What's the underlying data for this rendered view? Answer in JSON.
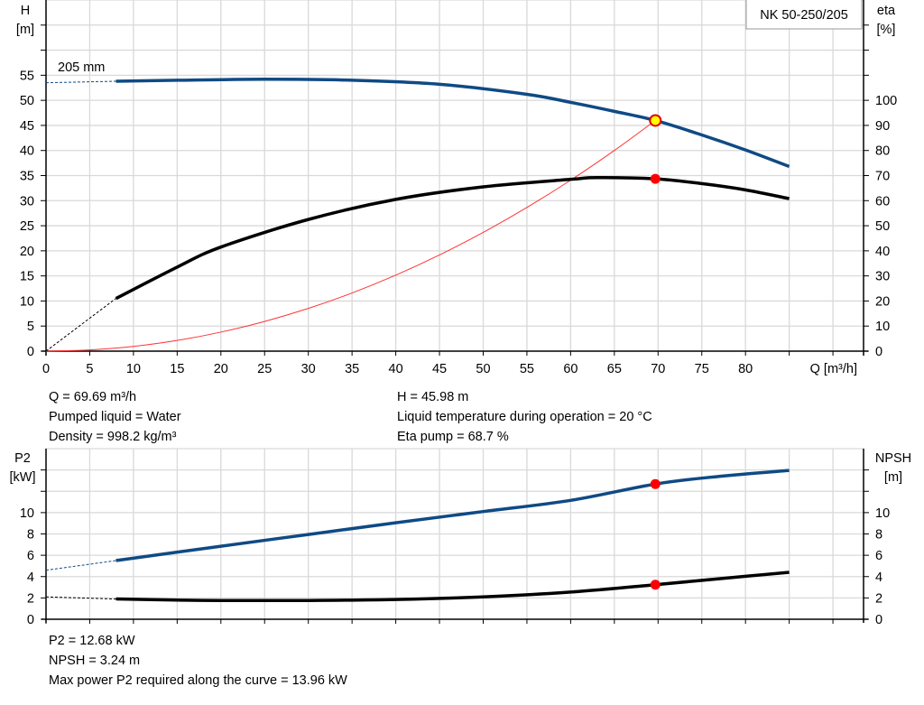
{
  "chart_data": [
    {
      "type": "line",
      "title": "NK 50-250/205",
      "xlabel": "Q [m³/h]",
      "ylabel_left": "H\n[m]",
      "ylabel_right": "eta\n[%]",
      "xlim": [
        0,
        93.5
      ],
      "ylim_left": [
        0,
        70
      ],
      "ylim_right": [
        0,
        140
      ],
      "x_ticks": [
        0,
        5,
        10,
        15,
        20,
        25,
        30,
        35,
        40,
        45,
        50,
        55,
        60,
        65,
        70,
        75,
        80
      ],
      "y_ticks_left": [
        0,
        5,
        10,
        15,
        20,
        25,
        30,
        35,
        40,
        45,
        50,
        55
      ],
      "y_ticks_right": [
        0,
        10,
        20,
        30,
        40,
        50,
        60,
        70,
        80,
        90,
        100
      ],
      "grid": true,
      "annotation": "205 mm",
      "series": [
        {
          "name": "H",
          "axis": "left",
          "color": "#0f4a84",
          "dashed": {
            "x": [
              0,
              8
            ],
            "y": [
              53.5,
              53.8
            ]
          },
          "x": [
            8,
            15,
            25,
            35,
            45,
            55,
            60,
            65,
            69.69,
            75,
            80,
            85
          ],
          "y": [
            53.8,
            54.0,
            54.2,
            54.0,
            53.2,
            51.2,
            49.6,
            47.8,
            45.98,
            43.1,
            40.1,
            36.8
          ]
        },
        {
          "name": "eta",
          "axis": "right",
          "color": "#000000",
          "dashed": {
            "x": [
              0,
              8
            ],
            "y": [
              0,
              21
            ]
          },
          "x": [
            8,
            15,
            20,
            30,
            40,
            50,
            60,
            63,
            69.69,
            75,
            80,
            85
          ],
          "y": [
            21,
            33.5,
            41.5,
            52.5,
            60.5,
            65.5,
            68.5,
            69.2,
            68.7,
            66.8,
            64.3,
            60.8
          ]
        },
        {
          "name": "system",
          "axis": "left",
          "color": "#ff3333",
          "x": [
            0,
            5,
            10,
            15,
            20,
            25,
            30,
            35,
            40,
            45,
            50,
            55,
            60,
            65,
            69.69
          ],
          "y": [
            0,
            0.24,
            0.95,
            2.13,
            3.79,
            5.92,
            8.52,
            11.6,
            15.15,
            19.17,
            23.67,
            28.64,
            34.08,
            40.0,
            45.98
          ]
        }
      ],
      "operating_point": {
        "x": 69.69,
        "H": 45.98,
        "eta": 68.7
      }
    },
    {
      "type": "line",
      "ylabel_left": "P2\n[kW]",
      "ylabel_right": "NPSH\n[m]",
      "xlim": [
        0,
        93.5
      ],
      "ylim": [
        0,
        16
      ],
      "y_ticks": [
        0,
        2,
        4,
        6,
        8,
        10
      ],
      "grid": true,
      "series": [
        {
          "name": "P2",
          "color": "#0f4a84",
          "dashed": {
            "x": [
              0,
              8
            ],
            "y": [
              4.6,
              5.5
            ]
          },
          "x": [
            8,
            20,
            30,
            40,
            50,
            60,
            69.69,
            77,
            85
          ],
          "y": [
            5.5,
            6.85,
            7.95,
            9.05,
            10.1,
            11.15,
            12.68,
            13.4,
            13.96
          ]
        },
        {
          "name": "NPSH",
          "color": "#000000",
          "dashed": {
            "x": [
              0,
              8
            ],
            "y": [
              2.1,
              1.9
            ]
          },
          "x": [
            8,
            15,
            20,
            30,
            40,
            50,
            60,
            69.69,
            77,
            85
          ],
          "y": [
            1.9,
            1.8,
            1.76,
            1.76,
            1.85,
            2.1,
            2.55,
            3.24,
            3.8,
            4.4
          ]
        }
      ],
      "operating_point": {
        "x": 69.69,
        "P2": 12.68,
        "NPSH": 3.24
      }
    }
  ],
  "info_top": {
    "left": [
      "Q = 69.69 m³/h",
      "Pumped liquid = Water",
      "Density = 998.2 kg/m³"
    ],
    "right": [
      "H = 45.98 m",
      "Liquid temperature during operation = 20 °C",
      "Eta pump = 68.7 %"
    ]
  },
  "info_bottom": [
    "P2 = 12.68 kW",
    "NPSH = 3.24 m",
    "Max power P2 required along the curve = 13.96 kW"
  ]
}
